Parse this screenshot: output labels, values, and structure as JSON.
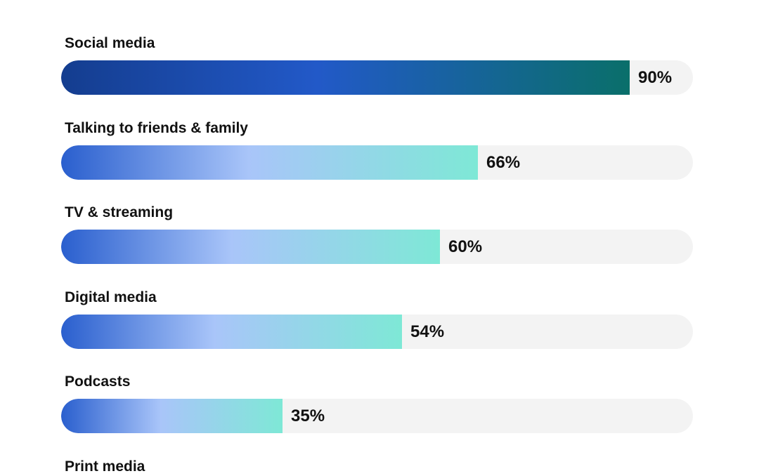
{
  "chart_data": {
    "type": "bar",
    "orientation": "horizontal",
    "categories": [
      "Social media",
      "Talking to friends & family",
      "TV & streaming",
      "Digital media",
      "Podcasts",
      "Print media"
    ],
    "values": [
      90,
      66,
      60,
      54,
      35,
      null
    ],
    "value_labels": [
      "90%",
      "66%",
      "60%",
      "54%",
      "35%",
      ""
    ],
    "xlim": [
      0,
      100
    ],
    "grid": false,
    "legend": "none",
    "colors": {
      "highlight_gradient": [
        "#143d8f",
        "#2259c8",
        "#0a6f6a"
      ],
      "bar_gradient": [
        "#2a5fce",
        "#a9c5f9",
        "#7ee8d6"
      ],
      "track": "#f3f3f3",
      "text": "#111111"
    }
  }
}
